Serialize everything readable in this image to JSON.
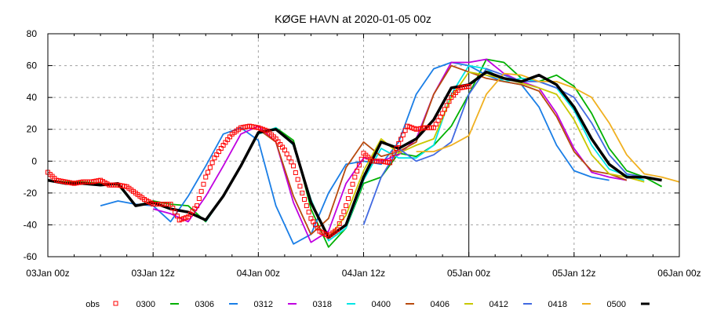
{
  "chart_data": {
    "type": "line",
    "title": "KØGE HAVN at 2020-01-05 00z",
    "xlabel": "",
    "ylabel": "",
    "ylim": [
      -60,
      80
    ],
    "yticks": [
      -60,
      -40,
      -20,
      0,
      20,
      40,
      60,
      80
    ],
    "xlim_hours": [
      0,
      72
    ],
    "xticks": [
      {
        "h": 0,
        "label": "03Jan 00z"
      },
      {
        "h": 12,
        "label": "03Jan 12z"
      },
      {
        "h": 24,
        "label": "04Jan 00z"
      },
      {
        "h": 36,
        "label": "04Jan 12z"
      },
      {
        "h": 48,
        "label": "05Jan 00z"
      },
      {
        "h": 60,
        "label": "05Jan 12z"
      },
      {
        "h": 72,
        "label": "06Jan 00z"
      }
    ],
    "analysis_time_hours": 48,
    "grid": true,
    "legend_position": "bottom",
    "observations": {
      "name": "obs",
      "color": "#ff0000",
      "hours": [
        0,
        1,
        2,
        3,
        4,
        5,
        6,
        7,
        8,
        9,
        10,
        11,
        12,
        13,
        14,
        15,
        16,
        17,
        18,
        19,
        20,
        21,
        22,
        23,
        24,
        25,
        26,
        27,
        28,
        29,
        30,
        31,
        32,
        33,
        34,
        35,
        36,
        37,
        38,
        39,
        40,
        41,
        42,
        43,
        44,
        45,
        46,
        47,
        48
      ],
      "values": [
        -7,
        -12,
        -13,
        -14,
        -13,
        -13,
        -12,
        -15,
        -15,
        -16,
        -20,
        -24,
        -27,
        -27,
        -27,
        -37,
        -35,
        -28,
        -10,
        2,
        10,
        17,
        21,
        22,
        21,
        19,
        14,
        7,
        -3,
        -20,
        -36,
        -44,
        -47,
        -43,
        -28,
        -10,
        5,
        0,
        0,
        -1,
        11,
        22,
        20,
        21,
        21,
        30,
        40,
        46,
        47
      ]
    },
    "series": [
      {
        "name": "0300",
        "color": "#00b000",
        "start_h": 0,
        "values": [
          -12,
          -13,
          -13,
          -14,
          -15,
          -28,
          -25,
          -27,
          -28,
          -38,
          -22,
          -3,
          17,
          21,
          13,
          -30,
          -54,
          -42,
          -14,
          -10,
          5,
          3,
          10,
          22,
          42,
          64,
          62,
          52,
          50,
          54,
          47,
          30,
          8,
          -6,
          -10,
          -16
        ]
      },
      {
        "name": "0306",
        "color": "#1a7ee6",
        "start_h": 6,
        "values": [
          -28,
          -25,
          -27,
          -28,
          -38,
          -22,
          -3,
          17,
          21,
          13,
          -28,
          -52,
          -46,
          -20,
          -2,
          0,
          -2,
          12,
          42,
          58,
          62,
          60,
          54,
          50,
          48,
          34,
          10,
          -6,
          -10,
          -12
        ]
      },
      {
        "name": "0312",
        "color": "#c000e0",
        "start_h": 12,
        "values": [
          -30,
          -33,
          -38,
          -22,
          -3,
          17,
          22,
          12,
          -26,
          -51,
          -44,
          -14,
          2,
          0,
          4,
          14,
          42,
          62,
          62,
          64,
          55,
          50,
          46,
          30,
          8,
          -7,
          -10,
          -12
        ]
      },
      {
        "name": "0318",
        "color": "#00e5e5",
        "start_h": 18,
        "values": [
          -38,
          -22,
          -3,
          17,
          21,
          10,
          -24,
          -50,
          -42,
          -12,
          8,
          2,
          2,
          10,
          42,
          60,
          58,
          50,
          52,
          50,
          46,
          32,
          10,
          -5,
          -9,
          -12
        ]
      },
      {
        "name": "0400",
        "color": "#b84a0e",
        "start_h": 24,
        "values": [
          20,
          12,
          -22,
          -46,
          -36,
          -4,
          12,
          3,
          6,
          12,
          42,
          60,
          56,
          52,
          50,
          48,
          44,
          28,
          6,
          -6,
          -8,
          -12
        ]
      },
      {
        "name": "0406",
        "color": "#c8c800",
        "start_h": 30,
        "values": [
          -25,
          -48,
          -34,
          -6,
          14,
          5,
          10,
          14,
          40,
          56,
          54,
          52,
          49,
          46,
          42,
          26,
          4,
          -8,
          -10,
          -13
        ]
      },
      {
        "name": "0412",
        "color": "#4169e1",
        "start_h": 36,
        "values": [
          -40,
          -10,
          8,
          0,
          4,
          12,
          42,
          58,
          54,
          50,
          50,
          46,
          40,
          24,
          4,
          -8,
          -10,
          -12
        ]
      },
      {
        "name": "0418",
        "color": "#f0b020",
        "start_h": 42,
        "values": [
          6,
          6,
          10,
          16,
          42,
          55,
          54,
          50,
          50,
          46,
          40,
          24,
          4,
          -8,
          -10,
          -13
        ]
      },
      {
        "name": "0500",
        "color": "#000000",
        "start_h": 0,
        "values": [
          -12,
          -14,
          -14,
          -15,
          -14,
          -28,
          -26,
          -30,
          -32,
          -37,
          -22,
          -3,
          18,
          20,
          11,
          -26,
          -48,
          -40,
          -10,
          12,
          8,
          14,
          26,
          46,
          48,
          56,
          52,
          50,
          54,
          48,
          34,
          14,
          -2,
          -10,
          -10,
          -12
        ]
      }
    ],
    "series_step_hours": 2
  },
  "legend": {
    "obs_label": "obs",
    "labels": [
      "0300",
      "0306",
      "0312",
      "0318",
      "0400",
      "0406",
      "0412",
      "0418",
      "0500"
    ]
  }
}
